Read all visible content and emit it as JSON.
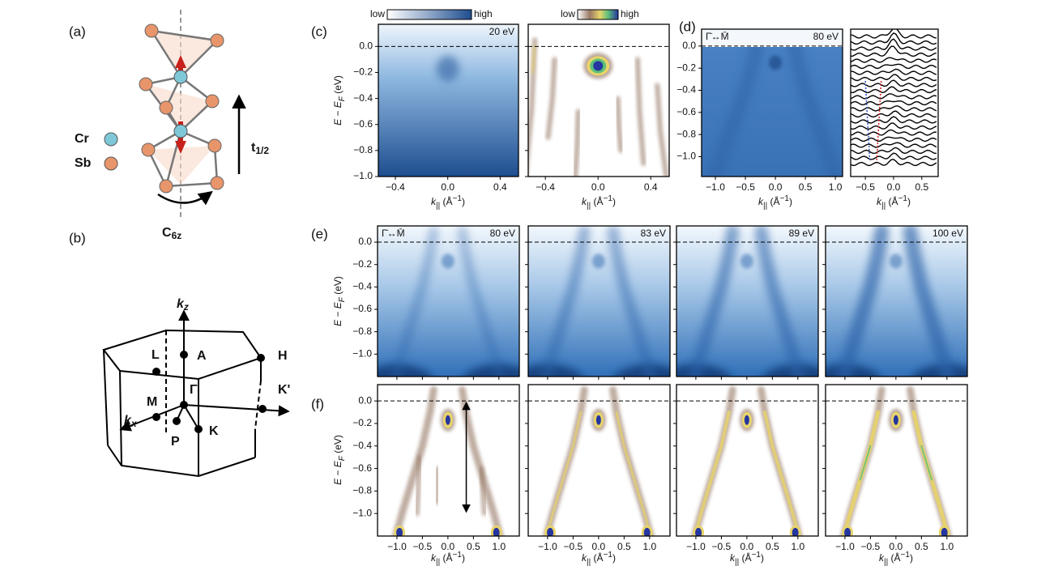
{
  "a": {
    "label": "(a)",
    "legend": [
      "Cr",
      "Sb"
    ],
    "translation": "t",
    "translation_sub": "1/2",
    "rotation": "C",
    "rotation_sub": "6z"
  },
  "b": {
    "label": "(b)",
    "kz": "k",
    "kz_sub": "z",
    "kx": "k",
    "kx_sub": "x",
    "points": [
      "L",
      "A",
      "H",
      "K'",
      "M",
      "Γ",
      "P",
      "K"
    ]
  },
  "c": {
    "label": "(c)",
    "colorbars": [
      {
        "low": "low",
        "high": "high"
      },
      {
        "low": "low",
        "high": "high"
      }
    ],
    "photon_energy": "20 eV",
    "yticks": [
      {
        "value": 0.0,
        "label": "0.0"
      },
      {
        "value": -0.2,
        "label": "−0.2"
      },
      {
        "value": -0.4,
        "label": "−0.4"
      },
      {
        "value": -0.6,
        "label": "−0.6"
      },
      {
        "value": -0.8,
        "label": "−0.8"
      },
      {
        "value": -1.0,
        "label": "−1.0"
      }
    ],
    "xticks": [
      {
        "value": -0.4,
        "label": "−0.4"
      },
      {
        "value": 0.0,
        "label": "0.0"
      },
      {
        "value": 0.4,
        "label": "0.4"
      }
    ]
  },
  "d": {
    "label": "(d)",
    "direction": "Γ̄↔M̄",
    "photon_energy": "80 eV",
    "yticks": [
      {
        "value": 0.0,
        "label": "0.0"
      },
      {
        "value": -0.2,
        "label": "−0.2"
      },
      {
        "value": -0.4,
        "label": "−0.4"
      },
      {
        "value": -0.6,
        "label": "−0.6"
      },
      {
        "value": -0.8,
        "label": "−0.8"
      },
      {
        "value": -1.0,
        "label": "−1.0"
      }
    ],
    "xticks": [
      {
        "value": -1.0,
        "label": "−1.0"
      },
      {
        "value": -0.5,
        "label": "−0.5"
      },
      {
        "value": 0.0,
        "label": "0.0"
      },
      {
        "value": 0.5,
        "label": "0.5"
      },
      {
        "value": 1.0,
        "label": "1.0"
      }
    ],
    "edc_xticks": [
      {
        "value": -0.5,
        "label": "−0.5"
      },
      {
        "value": 0.0,
        "label": "0.0"
      },
      {
        "value": 0.5,
        "label": "0.5"
      }
    ]
  },
  "e": {
    "label": "(e)",
    "direction": "Γ̄↔M̄",
    "photon_energies": [
      "80 eV",
      "83 eV",
      "89 eV",
      "100 eV"
    ],
    "yticks": [
      {
        "value": 0.0,
        "label": "0.0"
      },
      {
        "value": -0.2,
        "label": "−0.2"
      },
      {
        "value": -0.4,
        "label": "−0.4"
      },
      {
        "value": -0.6,
        "label": "−0.6"
      },
      {
        "value": -0.8,
        "label": "−0.8"
      },
      {
        "value": -1.0,
        "label": "−1.0"
      }
    ]
  },
  "f": {
    "label": "(f)",
    "yticks": [
      {
        "value": 0.0,
        "label": "0.0"
      },
      {
        "value": -0.2,
        "label": "−0.2"
      },
      {
        "value": -0.4,
        "label": "−0.4"
      },
      {
        "value": -0.6,
        "label": "−0.6"
      },
      {
        "value": -0.8,
        "label": "−0.8"
      },
      {
        "value": -1.0,
        "label": "−1.0"
      }
    ],
    "xticks": [
      {
        "value": -1.0,
        "label": "−1.0"
      },
      {
        "value": -0.5,
        "label": "−0.5"
      },
      {
        "value": 0.0,
        "label": "0.0"
      },
      {
        "value": 0.5,
        "label": "0.5"
      },
      {
        "value": 1.0,
        "label": "1.0"
      }
    ]
  },
  "axis_labels": {
    "energy": [
      "E − E",
      "F",
      " (eV)"
    ],
    "momentum": [
      "k",
      "||",
      " (Å",
      "−1",
      ")"
    ]
  }
}
